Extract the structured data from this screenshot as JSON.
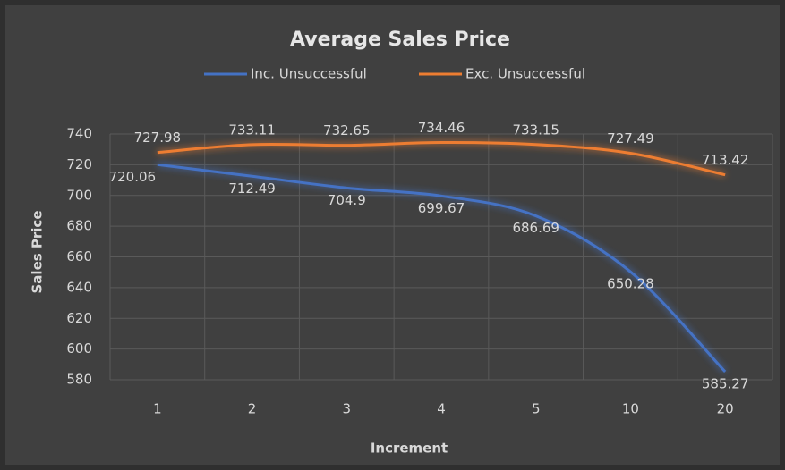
{
  "chart_data": {
    "type": "line",
    "title": "Average Sales Price",
    "xlabel": "Increment",
    "ylabel": "Sales Price",
    "categories": [
      "1",
      "2",
      "3",
      "4",
      "5",
      "10",
      "20"
    ],
    "series": [
      {
        "name": "Inc. Unsuccessful",
        "color": "#4472c4",
        "values": [
          720.06,
          712.49,
          704.9,
          699.67,
          686.69,
          650.28,
          585.27
        ]
      },
      {
        "name": "Exc. Unsuccessful",
        "color": "#ed7d31",
        "values": [
          727.98,
          733.11,
          732.65,
          734.46,
          733.15,
          727.49,
          713.42
        ]
      }
    ],
    "ylim": [
      580,
      740
    ],
    "yticks": [
      580,
      600,
      620,
      640,
      660,
      680,
      700,
      720,
      740
    ],
    "grid": true,
    "legend": "top"
  }
}
